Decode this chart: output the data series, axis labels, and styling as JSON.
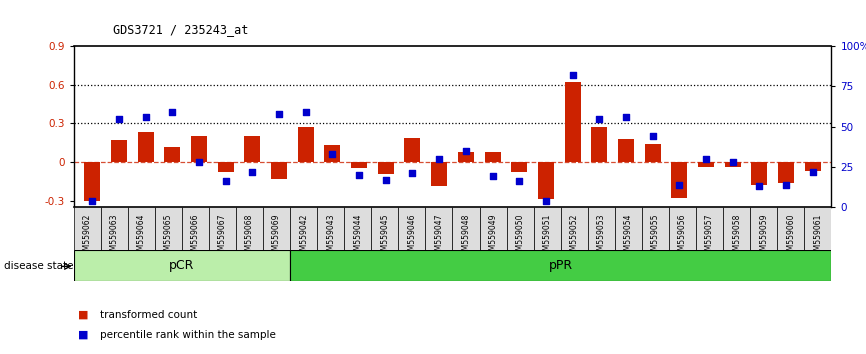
{
  "title": "GDS3721 / 235243_at",
  "samples": [
    "GSM559062",
    "GSM559063",
    "GSM559064",
    "GSM559065",
    "GSM559066",
    "GSM559067",
    "GSM559068",
    "GSM559069",
    "GSM559042",
    "GSM559043",
    "GSM559044",
    "GSM559045",
    "GSM559046",
    "GSM559047",
    "GSM559048",
    "GSM559049",
    "GSM559050",
    "GSM559051",
    "GSM559052",
    "GSM559053",
    "GSM559054",
    "GSM559055",
    "GSM559056",
    "GSM559057",
    "GSM559058",
    "GSM559059",
    "GSM559060",
    "GSM559061"
  ],
  "transformed_count": [
    -0.3,
    0.17,
    0.23,
    0.12,
    0.2,
    -0.08,
    0.2,
    -0.13,
    0.27,
    0.13,
    -0.05,
    -0.09,
    0.19,
    -0.19,
    0.08,
    0.08,
    -0.08,
    -0.29,
    0.62,
    0.27,
    0.18,
    0.14,
    -0.28,
    -0.04,
    -0.04,
    -0.18,
    -0.16,
    -0.07
  ],
  "percentile_rank": [
    4,
    55,
    56,
    59,
    28,
    16,
    22,
    58,
    59,
    33,
    20,
    17,
    21,
    30,
    35,
    19,
    16,
    4,
    82,
    55,
    56,
    44,
    14,
    30,
    28,
    13,
    14,
    22
  ],
  "pCR_count": 8,
  "pPR_count": 20,
  "ylim_left": [
    -0.35,
    0.9
  ],
  "ylim_right": [
    0,
    100
  ],
  "yticks_left": [
    -0.3,
    0.0,
    0.3,
    0.6,
    0.9
  ],
  "ytick_labels_left": [
    "-0.3",
    "0",
    "0.3",
    "0.6",
    "0.9"
  ],
  "yticks_right": [
    0,
    25,
    50,
    75,
    100
  ],
  "ytick_labels_right": [
    "0",
    "25",
    "50",
    "75",
    "100%"
  ],
  "bar_color": "#cc2200",
  "dot_color": "#0000cc",
  "bg_color": "#ffffff",
  "dashed_zero_color": "#cc2200",
  "pCR_color": "#bbeeaa",
  "pPR_color": "#44cc44",
  "label_bar": "transformed count",
  "label_dot": "percentile rank within the sample",
  "disease_state_label": "disease state"
}
